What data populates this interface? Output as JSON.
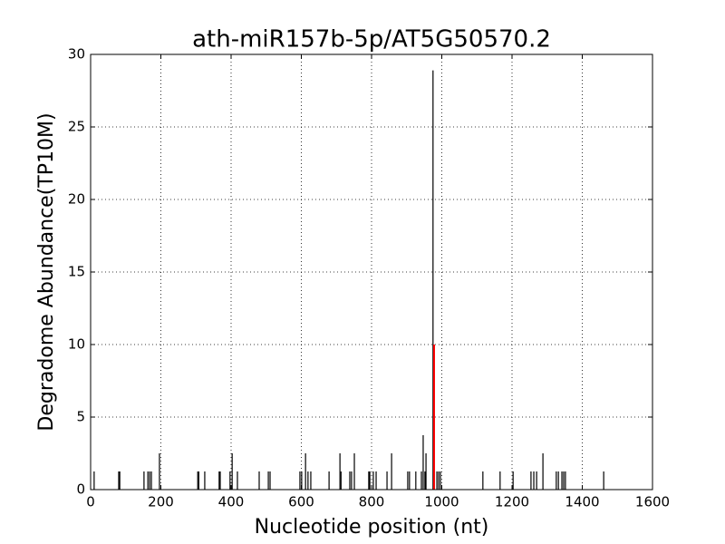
{
  "chart_data": {
    "type": "stem",
    "title": "ath-miR157b-5p/AT5G50570.2",
    "x_label": "Nucleotide position (nt)",
    "y_label": "Degradome Abundance(TP10M)",
    "series": [
      {
        "color": "#000000",
        "x": [
          10,
          80,
          83,
          152,
          163,
          168,
          173,
          196,
          305,
          308,
          325,
          366,
          369,
          397,
          403,
          418,
          480,
          506,
          511,
          596,
          601,
          612,
          619,
          627,
          679,
          710,
          713,
          738,
          743,
          751,
          792,
          795,
          805,
          813,
          844,
          857,
          903,
          908,
          926,
          942,
          947,
          952,
          955,
          975,
          986,
          991,
          996,
          1117,
          1166,
          1203,
          1254,
          1262,
          1270,
          1288,
          1326,
          1332,
          1342,
          1347,
          1352,
          1461
        ],
        "values": [
          1.25,
          1.25,
          1.25,
          1.25,
          1.25,
          1.25,
          1.25,
          2.5,
          1.25,
          1.25,
          1.25,
          1.25,
          1.25,
          1.25,
          2.5,
          1.25,
          1.25,
          1.25,
          1.25,
          1.25,
          1.25,
          2.5,
          1.25,
          1.25,
          1.25,
          2.5,
          1.25,
          1.25,
          1.25,
          2.5,
          1.25,
          1.25,
          1.25,
          1.25,
          1.25,
          2.5,
          1.25,
          1.25,
          1.25,
          1.25,
          3.75,
          1.25,
          2.5,
          28.9,
          1.25,
          1.25,
          1.25,
          1.25,
          1.25,
          1.25,
          1.25,
          1.25,
          1.25,
          2.5,
          1.25,
          1.25,
          1.25,
          1.25,
          1.25,
          1.25
        ]
      },
      {
        "color": "#ff0000",
        "x": [
          978
        ],
        "values": [
          10
        ]
      }
    ],
    "xlim": [
      0,
      1600
    ],
    "xticks": [
      0,
      200,
      400,
      600,
      800,
      1000,
      1200,
      1400,
      1600
    ],
    "ylim": [
      0,
      30
    ],
    "yticks": [
      0,
      5,
      10,
      15,
      20,
      25,
      30
    ],
    "grid": true
  }
}
